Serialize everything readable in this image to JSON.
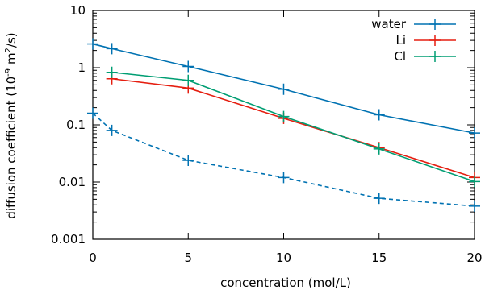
{
  "chart_data": {
    "type": "line",
    "xlabel": "concentration (mol/L)",
    "ylabel": {
      "pre": "diffusion coefficient (10",
      "exp1": "-9",
      "mid": " m",
      "exp2": "2",
      "post": "/s)"
    },
    "xlim": [
      0,
      20
    ],
    "ylim": [
      0.001,
      10
    ],
    "yscale": "log",
    "x_ticks": [
      "0",
      "5",
      "10",
      "15",
      "20"
    ],
    "y_ticks": [
      "0.001",
      "0.01",
      "0.1",
      "1",
      "10"
    ],
    "legend_position": "top-right",
    "series": [
      {
        "name": "water",
        "color": "#0072b2",
        "dashed": false,
        "points": [
          [
            0,
            2.6
          ],
          [
            1,
            2.15
          ],
          [
            5,
            1.05
          ],
          [
            10,
            0.42
          ],
          [
            15,
            0.15
          ],
          [
            20,
            0.072
          ]
        ]
      },
      {
        "name": "Li",
        "color": "#e51e10",
        "dashed": false,
        "points": [
          [
            1,
            0.64
          ],
          [
            5,
            0.44
          ],
          [
            10,
            0.13
          ],
          [
            15,
            0.04
          ],
          [
            20,
            0.012
          ]
        ]
      },
      {
        "name": "Cl",
        "color": "#009e73",
        "dashed": false,
        "points": [
          [
            1,
            0.83
          ],
          [
            5,
            0.6
          ],
          [
            10,
            0.14
          ],
          [
            15,
            0.038
          ],
          [
            20,
            0.0102
          ]
        ]
      },
      {
        "name": "",
        "color": "#0072b2",
        "dashed": true,
        "points": [
          [
            0,
            0.16
          ],
          [
            1,
            0.08
          ],
          [
            5,
            0.024
          ],
          [
            10,
            0.012
          ],
          [
            15,
            0.0052
          ],
          [
            20,
            0.0038
          ]
        ]
      }
    ]
  }
}
